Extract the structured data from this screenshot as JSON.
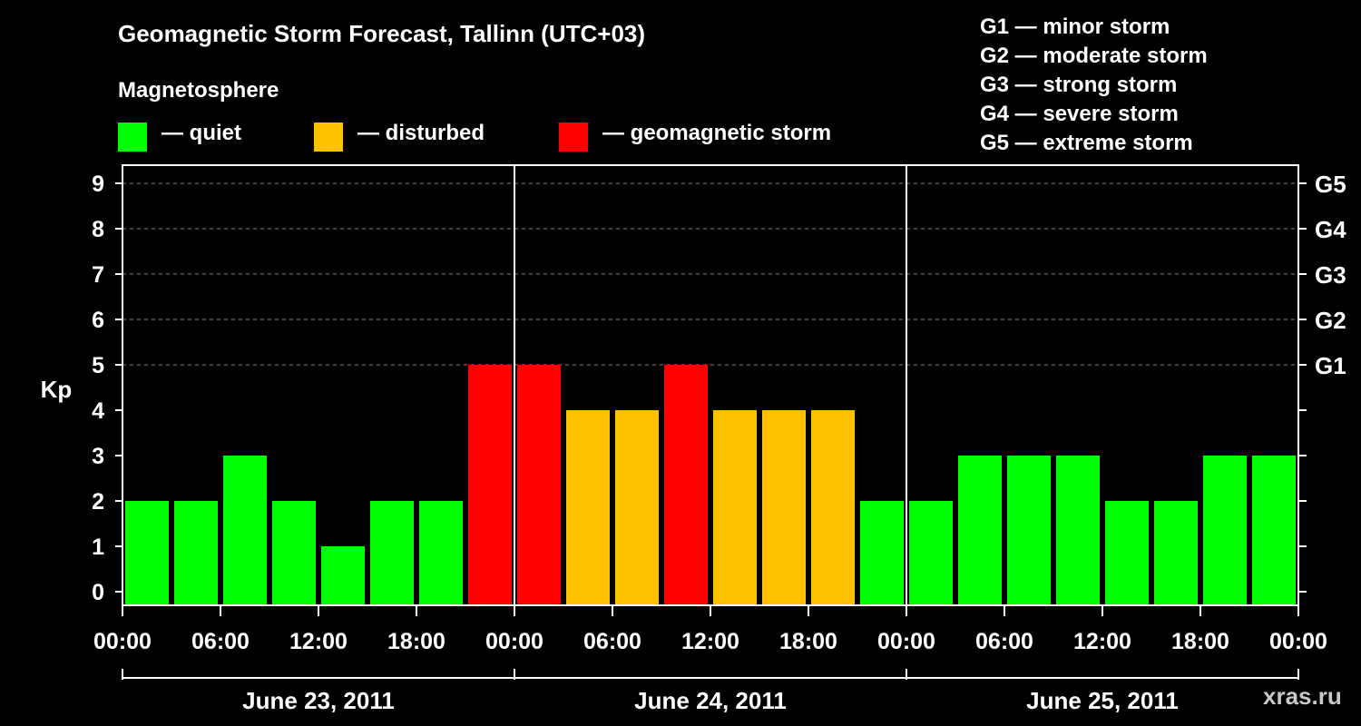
{
  "title": "Geomagnetic Storm Forecast, Tallinn (UTC+03)",
  "subtitle": "Magnetosphere",
  "legend": [
    {
      "label": "— quiet",
      "color": "#00ff00"
    },
    {
      "label": "— disturbed",
      "color": "#ffc000"
    },
    {
      "label": "— geomagnetic storm",
      "color": "#ff0000"
    }
  ],
  "g_scale": [
    "G1 — minor storm",
    "G2 — moderate storm",
    "G3 — strong storm",
    "G4 — severe storm",
    "G5 — extreme storm"
  ],
  "watermark": "xras.ru",
  "chart_data": {
    "type": "bar",
    "title": "Geomagnetic Storm Forecast, Tallinn (UTC+03)",
    "ylabel": "Kp",
    "ylim": [
      0,
      9
    ],
    "y_ticks": [
      "0",
      "1",
      "2",
      "3",
      "4",
      "5",
      "6",
      "7",
      "8",
      "9"
    ],
    "right_ticks": [
      {
        "value": 5,
        "label": "G1"
      },
      {
        "value": 6,
        "label": "G2"
      },
      {
        "value": 7,
        "label": "G3"
      },
      {
        "value": 8,
        "label": "G4"
      },
      {
        "value": 9,
        "label": "G5"
      }
    ],
    "x_tick_labels": [
      "00:00",
      "06:00",
      "12:00",
      "18:00",
      "00:00",
      "06:00",
      "12:00",
      "18:00",
      "00:00",
      "06:00",
      "12:00",
      "18:00",
      "00:00"
    ],
    "days": [
      "June 23, 2011",
      "June 24, 2011",
      "June 25, 2011"
    ],
    "interval_hours": 3,
    "values": [
      2,
      2,
      3,
      2,
      1,
      2,
      2,
      5,
      5,
      4,
      4,
      5,
      4,
      4,
      4,
      2,
      2,
      3,
      3,
      3,
      2,
      2,
      3,
      3
    ],
    "grid": true,
    "colors": {
      "quiet": "#00ff00",
      "disturbed": "#ffc000",
      "storm": "#ff0000",
      "background": "#000000",
      "axis": "#ffffff",
      "grid": "#808080"
    }
  }
}
